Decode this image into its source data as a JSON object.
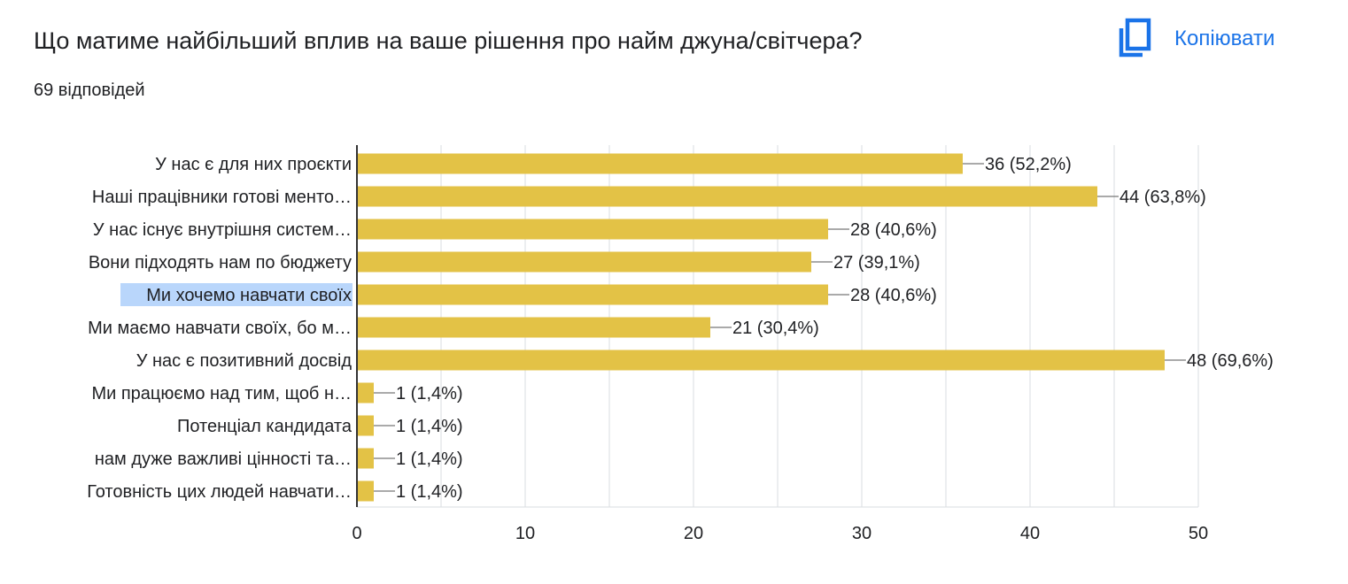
{
  "header": {
    "title": "Що матиме найбільший вплив на ваше рішення про найм джуна/світчера?",
    "responses": "69 відповідей",
    "copy_label": "Копіювати",
    "copy_icon": "copy-icon"
  },
  "colors": {
    "bar": "#e3c246",
    "axis": "#333333",
    "grid": "#dadce0",
    "link": "#1a73e8",
    "selection": "#b9d6fb"
  },
  "chart_data": {
    "type": "bar",
    "orientation": "horizontal",
    "categories": [
      "У нас є для них проєкти",
      "Наші працівники готові менто…",
      "У нас існує внутрішня систем…",
      "Вони підходять нам по бюджету",
      "Ми хочемо навчати своїх",
      "Ми маємо навчати своїх, бо м…",
      "У нас є позитивний досвід",
      "Ми працюємо над тим, щоб н…",
      "Потенціал кандидата",
      "нам дуже важливі цінності та…",
      "Готовність цих людей навчати…"
    ],
    "values": [
      36,
      44,
      28,
      27,
      28,
      21,
      48,
      1,
      1,
      1,
      1
    ],
    "value_labels": [
      "36 (52,2%)",
      "44 (63,8%)",
      "28 (40,6%)",
      "27 (39,1%)",
      "28 (40,6%)",
      "21 (30,4%)",
      "48 (69,6%)",
      "1 (1,4%)",
      "1 (1,4%)",
      "1 (1,4%)",
      "1 (1,4%)"
    ],
    "xlim": [
      0,
      50
    ],
    "xticks": [
      "0",
      "10",
      "20",
      "30",
      "40",
      "50"
    ],
    "grid": true,
    "selected_category_index": 4
  }
}
